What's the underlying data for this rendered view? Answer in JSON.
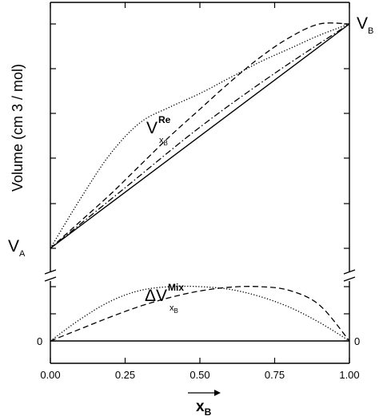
{
  "chart_data": {
    "type": "line",
    "title": "",
    "xlabel": {
      "main": "x",
      "sub": "B"
    },
    "ylabel": "Volume (cm 3 / mol)",
    "xlim": [
      0,
      1
    ],
    "x_ticks": [
      "0.00",
      "0.25",
      "0.50",
      "0.75",
      "1.00"
    ],
    "grid": false,
    "axis_break": true,
    "upper_panel": {
      "ylim": [
        0,
        1
      ],
      "left_label": {
        "main": "V",
        "sub": "A"
      },
      "right_label": {
        "main": "V",
        "sub": "B"
      },
      "curve_label": {
        "main": "V",
        "sub": "x",
        "subsub": "B",
        "sup": "Re"
      },
      "series": [
        {
          "style": "solid",
          "x": [
            0,
            1
          ],
          "y": [
            0,
            1
          ]
        },
        {
          "style": "dash-dot",
          "x": [
            0,
            0.25,
            0.5,
            0.75,
            1
          ],
          "y": [
            0,
            0.27,
            0.54,
            0.78,
            1
          ]
        },
        {
          "style": "dashed",
          "x": [
            0,
            0.1,
            0.2,
            0.3,
            0.4,
            0.5,
            0.6,
            0.7,
            0.8,
            0.9,
            1
          ],
          "y": [
            0,
            0.12,
            0.24,
            0.37,
            0.5,
            0.62,
            0.74,
            0.85,
            0.94,
            1.0,
            1.0
          ]
        },
        {
          "style": "dotted",
          "x": [
            0,
            0.1,
            0.2,
            0.3,
            0.4,
            0.5,
            0.6,
            0.7,
            0.8,
            0.9,
            1
          ],
          "y": [
            0,
            0.22,
            0.42,
            0.56,
            0.63,
            0.69,
            0.76,
            0.83,
            0.89,
            0.95,
            1.0
          ]
        }
      ]
    },
    "lower_panel": {
      "ylim": [
        0,
        1
      ],
      "left_label": "0",
      "right_label": "0",
      "curve_label": {
        "prefix": "Δ",
        "main": "V",
        "sub": "x",
        "subsub": "B",
        "sup": "Mix"
      },
      "series": [
        {
          "style": "solid",
          "x": [
            0,
            1
          ],
          "y": [
            0,
            0
          ]
        },
        {
          "style": "dotted",
          "x": [
            0,
            0.1,
            0.2,
            0.3,
            0.4,
            0.5,
            0.6,
            0.7,
            0.8,
            0.9,
            1
          ],
          "y": [
            0,
            0.4,
            0.73,
            0.93,
            1.0,
            1.0,
            0.95,
            0.82,
            0.62,
            0.34,
            0
          ]
        },
        {
          "style": "dashed",
          "x": [
            0,
            0.1,
            0.2,
            0.3,
            0.4,
            0.5,
            0.6,
            0.7,
            0.8,
            0.9,
            1
          ],
          "y": [
            0,
            0.22,
            0.44,
            0.64,
            0.8,
            0.92,
            0.99,
            1.0,
            0.93,
            0.66,
            0
          ]
        }
      ]
    }
  }
}
